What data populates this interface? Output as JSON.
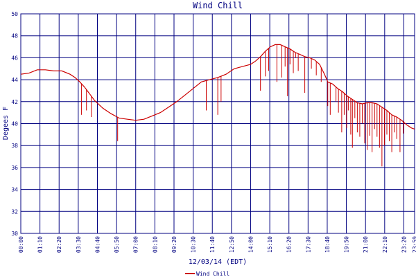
{
  "chart_data": {
    "type": "line",
    "title": "Wind Chill",
    "xlabel": "12/03/14 (EDT)",
    "ylabel": "Degees F",
    "ylim": [
      30,
      50
    ],
    "yticks": [
      30,
      32,
      34,
      36,
      38,
      40,
      42,
      44,
      46,
      48,
      50
    ],
    "xlim": [
      0,
      23.99
    ],
    "x_tick_labels": [
      "00:00",
      "01:10",
      "02:20",
      "03:30",
      "04:40",
      "05:50",
      "07:00",
      "08:10",
      "09:20",
      "10:30",
      "11:40",
      "12:50",
      "14:00",
      "15:10",
      "16:20",
      "17:30",
      "18:40",
      "19:50",
      "21:00",
      "22:10",
      "23:20",
      "23:59"
    ],
    "grid": true,
    "legend_position": "bottom-center",
    "colors": {
      "series": "#cc0000",
      "grid": "#000080",
      "text": "#000080"
    },
    "series": [
      {
        "name": "Wind Chill",
        "x": [
          0,
          0.5,
          1,
          1.5,
          2,
          2.5,
          3,
          3.3,
          3.6,
          3.9,
          4.2,
          4.5,
          5,
          5.5,
          6,
          6.5,
          7,
          7.5,
          8,
          8.5,
          9,
          9.5,
          10,
          10.5,
          11,
          11.5,
          12,
          12.5,
          13,
          13.5,
          14,
          14.3,
          14.6,
          14.9,
          15.2,
          15.5,
          15.8,
          16.1,
          16.4,
          16.7,
          17,
          17.3,
          17.6,
          17.9,
          18.2,
          18.5,
          18.7,
          19,
          19.3,
          19.6,
          19.9,
          20.2,
          20.5,
          20.8,
          21.1,
          21.4,
          21.7,
          22,
          22.3,
          22.6,
          22.9,
          23.2,
          23.5,
          23.8,
          23.99
        ],
        "y": [
          44.5,
          44.6,
          44.9,
          44.9,
          44.8,
          44.8,
          44.5,
          44.2,
          43.8,
          43.3,
          42.7,
          42.1,
          41.4,
          40.9,
          40.5,
          40.4,
          40.3,
          40.4,
          40.7,
          41.0,
          41.5,
          42.0,
          42.6,
          43.2,
          43.8,
          44.0,
          44.2,
          44.5,
          45.0,
          45.2,
          45.4,
          45.7,
          46.1,
          46.6,
          47.0,
          47.2,
          47.2,
          47.0,
          46.8,
          46.5,
          46.3,
          46.1,
          46.0,
          45.8,
          45.4,
          44.5,
          43.8,
          43.6,
          43.2,
          42.9,
          42.5,
          42.2,
          41.9,
          41.8,
          41.9,
          41.9,
          41.8,
          41.5,
          41.2,
          40.8,
          40.6,
          40.3,
          39.9,
          39.6,
          39.5
        ],
        "dips": [
          [
            3.7,
            40.8
          ],
          [
            4.0,
            41.2
          ],
          [
            4.3,
            40.6
          ],
          [
            5.9,
            38.4
          ],
          [
            11.3,
            41.2
          ],
          [
            12.0,
            40.8
          ],
          [
            12.2,
            42.0
          ],
          [
            14.6,
            43.0
          ],
          [
            14.9,
            44.3
          ],
          [
            15.1,
            44.8
          ],
          [
            15.6,
            43.8
          ],
          [
            15.9,
            44.2
          ],
          [
            16.1,
            45.2
          ],
          [
            16.25,
            42.5
          ],
          [
            16.4,
            45.4
          ],
          [
            16.6,
            44.6
          ],
          [
            16.75,
            46.0
          ],
          [
            16.9,
            44.8
          ],
          [
            17.3,
            42.8
          ],
          [
            17.7,
            45.0
          ],
          [
            18.0,
            44.4
          ],
          [
            18.3,
            43.8
          ],
          [
            18.7,
            41.6
          ],
          [
            18.85,
            40.8
          ],
          [
            19.2,
            42.0
          ],
          [
            19.35,
            41.0
          ],
          [
            19.55,
            39.2
          ],
          [
            19.7,
            40.8
          ],
          [
            19.85,
            39.6
          ],
          [
            19.95,
            41.2
          ],
          [
            20.1,
            39.0
          ],
          [
            20.2,
            37.8
          ],
          [
            20.35,
            40.5
          ],
          [
            20.5,
            39.2
          ],
          [
            20.65,
            38.8
          ],
          [
            20.8,
            40.0
          ],
          [
            20.95,
            38.2
          ],
          [
            21.1,
            37.6
          ],
          [
            21.25,
            38.9
          ],
          [
            21.4,
            37.4
          ],
          [
            21.55,
            39.5
          ],
          [
            21.7,
            38.8
          ],
          [
            21.85,
            37.8
          ],
          [
            22.0,
            36.1
          ],
          [
            22.15,
            38.0
          ],
          [
            22.3,
            39.0
          ],
          [
            22.45,
            38.4
          ],
          [
            22.6,
            37.4
          ],
          [
            22.75,
            39.2
          ],
          [
            22.9,
            38.6
          ],
          [
            23.1,
            37.4
          ],
          [
            23.3,
            39.1
          ]
        ]
      }
    ]
  }
}
